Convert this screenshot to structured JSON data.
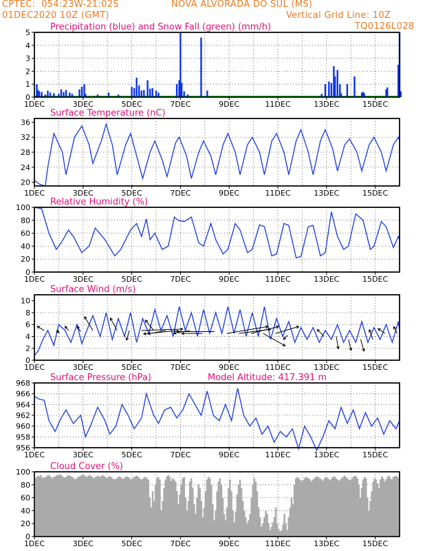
{
  "header": {
    "line1_left": "CPTEC:  054:23W-21:02S",
    "line1_center": "NOVA ALVORADA DO SUL (MS)",
    "line2_left": "01DEC2020 10Z (GMT)",
    "line2_right": "Vertical Grid Line: 10Z",
    "line3_right": "TQ0126L028"
  },
  "colors": {
    "header_text": "#e87a1e",
    "panel_title": "#e0107a",
    "precip": "#0a33e6",
    "snow": "#1a9e1a",
    "line": "#2244dd",
    "cloud": "#aaaaaa",
    "axis": "#000000"
  },
  "x_tick_labels": [
    "1DEC",
    "3DEC",
    "5DEC",
    "7DEC",
    "9DEC",
    "11DEC",
    "13DEC",
    "15DEC"
  ],
  "chart_data": [
    {
      "id": "precip",
      "type": "bar",
      "title": "Precipitation (blue) and Snow Fall (green) (mm/h)",
      "ylim": [
        0,
        5
      ],
      "yticks": [
        "0",
        "1",
        "2",
        "3",
        "4",
        "5"
      ],
      "x_days": [
        1.1,
        1.15,
        1.2,
        1.3,
        1.45,
        1.55,
        1.65,
        1.8,
        2.0,
        2.1,
        2.2,
        2.3,
        2.45,
        2.55,
        2.85,
        2.95,
        3.05,
        3.1,
        3.6,
        4.05,
        4.45,
        5.0,
        5.1,
        5.2,
        5.3,
        5.4,
        5.5,
        5.65,
        5.75,
        5.85,
        6.0,
        6.1,
        6.85,
        6.95,
        7.0,
        7.05,
        7.15,
        7.3,
        7.85,
        8.1,
        12.8,
        12.95,
        13.1,
        13.2,
        13.3,
        13.35,
        13.45,
        13.55,
        13.6,
        13.85,
        14.15,
        14.45,
        14.5,
        14.55,
        15.45,
        15.5,
        15.95,
        16.0,
        16.05
      ],
      "values": [
        1.0,
        0.55,
        0.45,
        0.4,
        0.2,
        0.5,
        0.35,
        0.3,
        0.25,
        0.6,
        0.4,
        0.55,
        0.35,
        0.25,
        0.6,
        0.8,
        1.0,
        0.25,
        0.2,
        0.35,
        0.2,
        0.8,
        0.7,
        1.5,
        0.9,
        0.5,
        0.55,
        1.3,
        0.65,
        0.7,
        0.5,
        0.35,
        1.0,
        1.3,
        5.0,
        1.1,
        0.45,
        0.2,
        4.6,
        0.5,
        0.25,
        1.0,
        1.2,
        1.1,
        2.4,
        1.6,
        2.1,
        1.0,
        0.3,
        1.0,
        1.6,
        0.35,
        0.4,
        0.3,
        0.6,
        0.75,
        2.5,
        5.0,
        0.45
      ],
      "snow_line": true
    },
    {
      "id": "temperature",
      "type": "line",
      "title": "Surface Temperature (nC)",
      "ylim": [
        19,
        37
      ],
      "yticks": [
        "20",
        "24",
        "28",
        "32",
        "36"
      ],
      "x_days": [
        1.0,
        1.2,
        1.45,
        1.55,
        1.8,
        2.15,
        2.3,
        2.65,
        2.95,
        3.25,
        3.4,
        3.75,
        3.95,
        4.2,
        4.4,
        4.75,
        4.95,
        5.2,
        5.45,
        5.75,
        5.95,
        6.25,
        6.45,
        6.8,
        6.95,
        7.25,
        7.45,
        7.75,
        7.95,
        8.25,
        8.45,
        8.75,
        8.95,
        9.25,
        9.45,
        9.75,
        9.95,
        10.25,
        10.45,
        10.75,
        10.95,
        11.25,
        11.45,
        11.75,
        11.95,
        12.25,
        12.45,
        12.75,
        12.95,
        13.25,
        13.45,
        13.75,
        13.95,
        14.25,
        14.45,
        14.75,
        14.95,
        15.25,
        15.45,
        15.75,
        15.95,
        16.0
      ],
      "values": [
        20.5,
        19.5,
        19.0,
        24.0,
        33.0,
        28.0,
        22.0,
        32.0,
        35.0,
        30.0,
        25.0,
        31.0,
        35.5,
        30.0,
        22.0,
        30.0,
        33.0,
        27.0,
        21.0,
        28.0,
        31.0,
        26.0,
        21.5,
        30.5,
        32.0,
        27.0,
        21.0,
        28.0,
        31.0,
        27.0,
        22.0,
        30.0,
        33.0,
        28.0,
        22.0,
        30.0,
        32.0,
        28.0,
        22.0,
        31.0,
        33.0,
        28.0,
        22.0,
        31.0,
        34.0,
        28.0,
        22.0,
        31.0,
        34.0,
        29.0,
        23.0,
        30.0,
        31.5,
        28.0,
        23.0,
        30.0,
        32.0,
        28.0,
        23.0,
        30.0,
        32.0,
        31.0
      ]
    },
    {
      "id": "humidity",
      "type": "line",
      "title": "Relative Humidity (%)",
      "ylim": [
        0,
        100
      ],
      "yticks": [
        "0",
        "20",
        "40",
        "60",
        "80",
        "100"
      ],
      "x_days": [
        1.0,
        1.3,
        1.6,
        1.9,
        2.1,
        2.4,
        2.6,
        2.95,
        3.25,
        3.5,
        3.9,
        4.3,
        4.55,
        4.95,
        5.2,
        5.4,
        5.6,
        5.75,
        5.95,
        6.25,
        6.5,
        6.75,
        6.9,
        7.15,
        7.45,
        7.75,
        7.95,
        8.25,
        8.45,
        8.75,
        8.95,
        9.25,
        9.45,
        9.75,
        9.95,
        10.25,
        10.45,
        10.75,
        10.95,
        11.25,
        11.45,
        11.75,
        11.95,
        12.25,
        12.45,
        12.75,
        12.95,
        13.2,
        13.45,
        13.7,
        13.9,
        14.2,
        14.5,
        14.8,
        14.95,
        15.25,
        15.45,
        15.75,
        15.95,
        16.0
      ],
      "values": [
        100.0,
        98.0,
        60.0,
        35.0,
        45.0,
        65.0,
        55.0,
        30.0,
        40.0,
        68.0,
        50.0,
        25.0,
        35.0,
        65.0,
        75.0,
        55.0,
        82.0,
        50.0,
        60.0,
        35.0,
        40.0,
        85.0,
        80.0,
        78.0,
        85.0,
        45.0,
        40.0,
        75.0,
        50.0,
        28.0,
        35.0,
        75.0,
        65.0,
        30.0,
        35.0,
        73.0,
        70.0,
        25.0,
        28.0,
        75.0,
        72.0,
        22.0,
        24.0,
        70.0,
        72.0,
        25.0,
        30.0,
        93.0,
        55.0,
        35.0,
        40.0,
        90.0,
        80.0,
        35.0,
        40.0,
        78.0,
        70.0,
        38.0,
        55.0,
        50.0
      ]
    },
    {
      "id": "wind",
      "type": "line",
      "title": "Surface Wind (m/s)",
      "ylim": [
        0,
        11
      ],
      "yticks": [
        "0",
        "2",
        "4",
        "6",
        "8",
        "10"
      ],
      "x_days": [
        1.0,
        1.15,
        1.35,
        1.55,
        1.8,
        2.0,
        2.25,
        2.5,
        2.75,
        2.95,
        3.2,
        3.4,
        3.7,
        3.95,
        4.2,
        4.45,
        4.7,
        4.95,
        5.2,
        5.45,
        5.7,
        5.95,
        6.2,
        6.45,
        6.7,
        6.95,
        7.2,
        7.45,
        7.7,
        7.95,
        8.2,
        8.45,
        8.7,
        8.95,
        9.2,
        9.45,
        9.7,
        9.95,
        10.2,
        10.45,
        10.7,
        10.95,
        11.2,
        11.45,
        11.7,
        11.95,
        12.2,
        12.45,
        12.7,
        12.95,
        13.2,
        13.45,
        13.7,
        13.95,
        14.2,
        14.45,
        14.7,
        14.95,
        15.2,
        15.45,
        15.7,
        15.95,
        16.0
      ],
      "values": [
        0.8,
        1.5,
        3.5,
        5.0,
        2.5,
        6.0,
        5.0,
        3.0,
        6.0,
        2.8,
        5.5,
        7.5,
        4.0,
        8.0,
        3.5,
        7.0,
        4.0,
        8.0,
        3.0,
        7.0,
        4.5,
        8.5,
        5.0,
        7.5,
        4.0,
        9.0,
        5.0,
        8.0,
        4.0,
        8.5,
        4.5,
        8.0,
        4.5,
        9.0,
        4.5,
        8.5,
        4.0,
        8.0,
        4.0,
        9.0,
        3.5,
        7.0,
        4.0,
        6.5,
        3.0,
        5.5,
        3.5,
        5.5,
        3.0,
        5.0,
        3.5,
        6.0,
        3.0,
        5.0,
        3.0,
        6.5,
        3.0,
        5.5,
        3.5,
        6.0,
        3.0,
        6.5,
        5.0
      ],
      "arrows": {
        "x_days": [
          1.4,
          1.9,
          2.4,
          2.9,
          3.4,
          4.4,
          4.9,
          5.4,
          5.9,
          6.4,
          6.9,
          7.4,
          7.9,
          8.4,
          8.9,
          9.4,
          9.9,
          10.4,
          10.9,
          11.4,
          12.9,
          13.4,
          13.9,
          14.4,
          14.9,
          15.4,
          15.9
        ],
        "values": [
          5.0,
          5.0,
          5.0,
          4.8,
          5.0,
          5.0,
          5.0,
          5.0,
          5.0,
          5.0,
          5.0,
          5.0,
          4.5,
          4.8,
          4.5,
          4.5,
          4.5,
          4.5,
          4.5,
          4.2,
          4.0,
          4.0,
          3.5,
          3.5,
          3.5,
          4.5,
          4.5
        ],
        "u": [
          -1.0,
          0.4,
          -0.5,
          -0.5,
          -1.2,
          -1.0,
          -0.4,
          6.0,
          -1.2,
          -2.6,
          -5.0,
          -2.4,
          -3.0,
          -5.5,
          6.0,
          4.6,
          4.0,
          3.2,
          3.4,
          -0.6,
          -1.0,
          0.3,
          0.4,
          0.5,
          -0.5,
          -1.0,
          -0.5
        ],
        "v": [
          0.6,
          -0.3,
          0.6,
          0.8,
          2.0,
          1.8,
          -1.4,
          0.2,
          1.5,
          -0.5,
          -0.5,
          -0.4,
          0.0,
          0.0,
          1.0,
          0.6,
          1.0,
          -1.8,
          1.0,
          -0.6,
          1.0,
          -1.8,
          -1.6,
          -1.7,
          1.4,
          0.7,
          1.0
        ]
      }
    },
    {
      "id": "pressure",
      "type": "line",
      "title": "Surface Pressure (hPa)",
      "subtitle": "Model Altitude: 417.391 m",
      "ylim": [
        956,
        968
      ],
      "yticks": [
        "956",
        "958",
        "960",
        "962",
        "964",
        "966",
        "968"
      ],
      "x_days": [
        1.0,
        1.2,
        1.4,
        1.6,
        1.85,
        2.1,
        2.3,
        2.6,
        2.9,
        3.1,
        3.3,
        3.6,
        3.9,
        4.1,
        4.35,
        4.6,
        4.85,
        5.1,
        5.4,
        5.6,
        5.9,
        6.1,
        6.35,
        6.6,
        6.85,
        7.1,
        7.35,
        7.6,
        7.85,
        8.1,
        8.35,
        8.6,
        8.85,
        9.1,
        9.35,
        9.6,
        9.85,
        10.1,
        10.35,
        10.6,
        10.85,
        11.1,
        11.35,
        11.6,
        11.85,
        12.1,
        12.35,
        12.6,
        12.85,
        13.1,
        13.35,
        13.6,
        13.85,
        14.1,
        14.35,
        14.6,
        14.85,
        15.1,
        15.35,
        15.6,
        15.85,
        16.0
      ],
      "values": [
        965.5,
        965.0,
        964.8,
        961.0,
        959.0,
        961.5,
        963.0,
        960.5,
        962.0,
        958.0,
        960.0,
        963.5,
        961.0,
        958.5,
        960.0,
        964.0,
        962.0,
        959.5,
        961.5,
        966.0,
        962.0,
        960.5,
        963.0,
        963.5,
        961.5,
        963.0,
        966.0,
        964.0,
        962.0,
        966.5,
        962.0,
        961.0,
        964.0,
        961.0,
        967.0,
        962.0,
        960.0,
        961.5,
        958.5,
        960.0,
        957.0,
        959.0,
        958.0,
        959.5,
        955.8,
        960.0,
        958.0,
        955.5,
        958.0,
        961.0,
        959.5,
        963.5,
        960.5,
        963.0,
        959.5,
        962.5,
        960.0,
        961.5,
        958.5,
        961.0,
        959.5,
        961.0
      ]
    },
    {
      "id": "cloud",
      "type": "bar",
      "title": "Cloud Cover (%)",
      "ylim": [
        0,
        100
      ],
      "yticks": [
        "0",
        "20",
        "40",
        "60",
        "80",
        "100"
      ],
      "x_start": 1.0,
      "x_end": 16.0,
      "step_days": 0.0625,
      "values": [
        90,
        92,
        94,
        93,
        95,
        90,
        92,
        91,
        93,
        95,
        94,
        92,
        90,
        92,
        93,
        95,
        94,
        96,
        95,
        93,
        92,
        91,
        93,
        95,
        94,
        93,
        92,
        90,
        88,
        90,
        92,
        93,
        94,
        96,
        95,
        93,
        92,
        94,
        95,
        93,
        92,
        90,
        92,
        93,
        94,
        92,
        93,
        95,
        94,
        92,
        90,
        92,
        93,
        92,
        90,
        88,
        89,
        90,
        92,
        93,
        91,
        89,
        90,
        92,
        93,
        92,
        90,
        88,
        90,
        92,
        93,
        94,
        92,
        90,
        88,
        89,
        91,
        92,
        90,
        88,
        60,
        45,
        70,
        55,
        80,
        90,
        92,
        88,
        40,
        55,
        75,
        88,
        93,
        95,
        92,
        86,
        90,
        88,
        85,
        70,
        50,
        65,
        80,
        90,
        92,
        60,
        40,
        55,
        85,
        90,
        75,
        50,
        35,
        60,
        80,
        75,
        55,
        30,
        45,
        70,
        88,
        92,
        90,
        80,
        50,
        25,
        40,
        70,
        85,
        90,
        80,
        60,
        35,
        25,
        45,
        75,
        88,
        70,
        40,
        22,
        38,
        65,
        80,
        88,
        75,
        55,
        40,
        30,
        20,
        25,
        35,
        60,
        80,
        90,
        85,
        70,
        45,
        30,
        15,
        20,
        30,
        40,
        35,
        20,
        10,
        15,
        22,
        30,
        45,
        20,
        12,
        8,
        10,
        18,
        35,
        20,
        10,
        30,
        45,
        60,
        50,
        80,
        90,
        92,
        90,
        88,
        85,
        87,
        90,
        92,
        91,
        90,
        88,
        85,
        88,
        90,
        92,
        93,
        91,
        90,
        88,
        86,
        90,
        92,
        91,
        89,
        87,
        90,
        92,
        93,
        90,
        88,
        86,
        88,
        90,
        92,
        94,
        92,
        90,
        88,
        86,
        89,
        92,
        94,
        93,
        90,
        80,
        60,
        75,
        88,
        92,
        90,
        60,
        40,
        55,
        70,
        85,
        90,
        88,
        82,
        75,
        88,
        93,
        90,
        85,
        88,
        92,
        94,
        90,
        88,
        92,
        93,
        94,
        92,
        90
      ]
    }
  ]
}
